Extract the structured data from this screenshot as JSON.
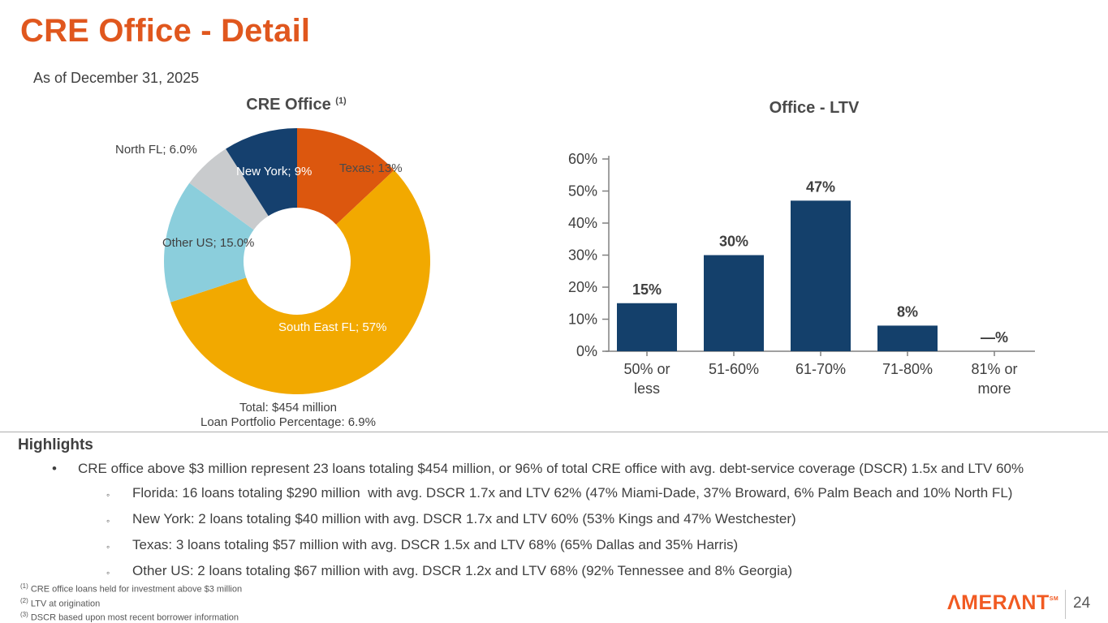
{
  "slide": {
    "title": "CRE Office - Detail",
    "as_of": "As of December 31, 2025",
    "page_number": "24"
  },
  "brand": {
    "name": "AMERANT",
    "logo_display": "ΛMERΛNT",
    "logo_superscript": "SM",
    "logo_color": "#F15A22"
  },
  "colors": {
    "title_orange": "#E0571E",
    "bar_navy": "#14406B",
    "text_gray": "#3F3F3F",
    "axis_gray": "#808080"
  },
  "pie_section": {
    "title": "CRE Office",
    "title_superscript": "(1)",
    "total_line1": "Total: $454 million",
    "total_line2": "Loan Portfolio Percentage: 6.9%"
  },
  "bar_section": {
    "title": "Office - LTV"
  },
  "chart_data": [
    {
      "type": "pie",
      "title": "CRE Office (1)",
      "donut": true,
      "start_angle_deg": 0,
      "clockwise": true,
      "slices": [
        {
          "label": "Texas",
          "value": 13,
          "display": "Texas; 13%",
          "color": "#DC570E",
          "label_color": "#4A4A4A"
        },
        {
          "label": "South East FL",
          "value": 57,
          "display": "South East FL; 57%",
          "color": "#F2A900",
          "label_color": "#FFFFFF"
        },
        {
          "label": "Other US",
          "value": 15,
          "display": "Other US; 15.0%",
          "color": "#8BCEDC",
          "label_color": "#3F3F3F"
        },
        {
          "label": "North FL",
          "value": 6,
          "display": "North FL; 6.0%",
          "color": "#C9CBCD",
          "label_color": "#3F3F3F"
        },
        {
          "label": "New York",
          "value": 9,
          "display": "New York; 9%",
          "color": "#15406E",
          "label_color": "#FFFFFF"
        }
      ],
      "notes": [
        "Total: $454 million",
        "Loan Portfolio Percentage: 6.9%"
      ]
    },
    {
      "type": "bar",
      "title": "Office - LTV",
      "categories": [
        "50% or\nless",
        "51-60%",
        "61-70%",
        "71-80%",
        "81% or\nmore"
      ],
      "values": [
        15,
        30,
        47,
        8,
        0
      ],
      "value_labels": [
        "15%",
        "30%",
        "47%",
        "8%",
        "—%"
      ],
      "ylabel": "",
      "xlabel": "",
      "ylim": [
        0,
        60
      ],
      "ytick_step": 10,
      "ytick_labels": [
        "0%",
        "10%",
        "20%",
        "30%",
        "40%",
        "50%",
        "60%"
      ],
      "bar_color": "#14406B",
      "grid": false,
      "legend": false
    }
  ],
  "highlights": {
    "heading": "Highlights",
    "bullet": "CRE office above $3 million represent 23 loans totaling $454 million, or 96% of total CRE office with avg. debt-service coverage (DSCR) 1.5x and LTV 60%",
    "sub_bullets": [
      "Florida: 16 loans totaling $290 million  with avg. DSCR 1.7x and LTV 62% (47% Miami-Dade, 37% Broward, 6% Palm Beach and 10% North FL)",
      "New York: 2 loans totaling $40 million with avg. DSCR 1.7x and LTV 60% (53% Kings and 47% Westchester)",
      "Texas: 3 loans totaling $57 million with avg. DSCR 1.5x and LTV 68% (65% Dallas and 35% Harris)",
      "Other US: 2 loans totaling $67 million with avg. DSCR 1.2x and LTV 68% (92% Tennessee and 8% Georgia)"
    ]
  },
  "footnotes": [
    {
      "sup": "(1)",
      "text": "CRE office loans held for investment above $3 million"
    },
    {
      "sup": "(2)",
      "text": "LTV at origination"
    },
    {
      "sup": "(3)",
      "text": "DSCR based upon most recent borrower information"
    }
  ]
}
